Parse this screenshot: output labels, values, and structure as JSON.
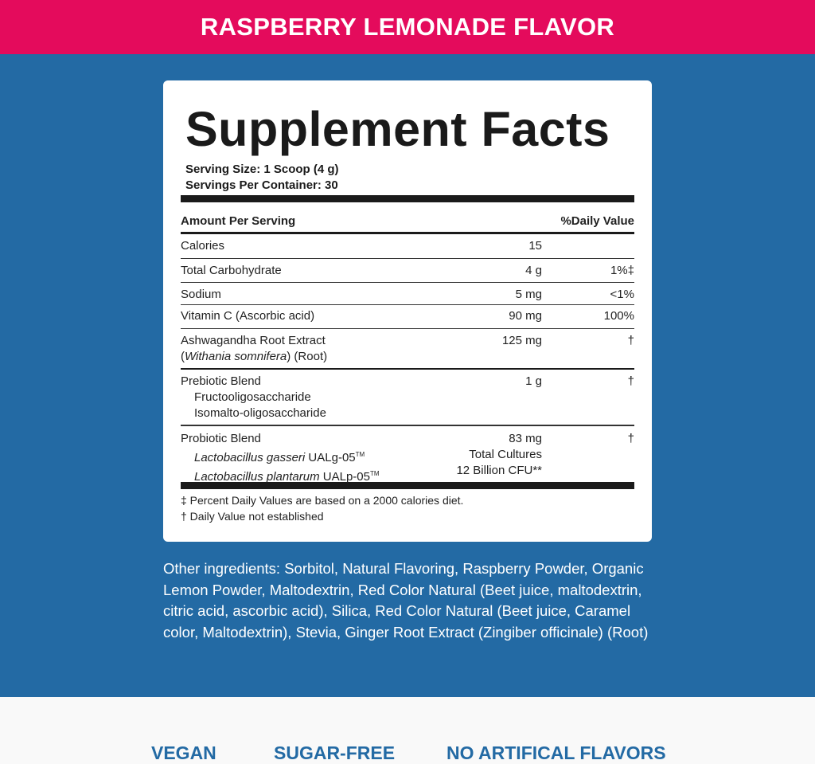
{
  "header": {
    "title": "RASPBERRY LEMONADE FLAVOR"
  },
  "colors": {
    "header_bg": "#e40b5c",
    "main_bg": "#236aa4",
    "card_bg": "#ffffff",
    "badge_text": "#236aa4"
  },
  "facts": {
    "title": "Supplement Facts",
    "serving_size": "Serving Size: 1 Scoop (4 g)",
    "servings_per_container": "Servings Per Container: 30",
    "col_amount": "Amount Per Serving",
    "col_dv": "%Daily Value",
    "rows": [
      {
        "name": "Calories",
        "amount": "15",
        "dv": ""
      },
      {
        "name": "Total Carbohydrate",
        "amount": "4 g",
        "dv": "1%‡"
      },
      {
        "name": "Sodium",
        "amount": "5 mg",
        "dv": "<1%"
      },
      {
        "name": "Vitamin C (Ascorbic acid)",
        "amount": "90 mg",
        "dv": "100%"
      },
      {
        "name": "Ashwagandha Root Extract",
        "latin": "Withania somnifera",
        "suffix": ") (Root)",
        "amount": "125 mg",
        "dv": "†"
      },
      {
        "name": "Prebiotic Blend",
        "sub": [
          "Fructooligosaccharide",
          "Isomalto-oligosaccharide"
        ],
        "amount": "1 g",
        "dv": "†"
      },
      {
        "name": "Probiotic Blend",
        "sub": [
          {
            "latin": "Lactobacillus gasseri",
            "strain": "UALg-05",
            "tm": "TM"
          },
          {
            "latin": "Lactobacillus plantarum",
            "strain": "UALp-05",
            "tm": "TM"
          }
        ],
        "amount": "83 mg",
        "amount2": "Total Cultures",
        "amount3": "12 Billion CFU**",
        "dv": "†"
      }
    ],
    "footnotes": [
      "‡ Percent Daily Values are based on a 2000 calories diet.",
      "† Daily Value not established"
    ]
  },
  "other_ingredients": "Other ingredients: Sorbitol, Natural Flavoring, Raspberry Powder, Organic Lemon Powder, Maltodextrin, Red Color Natural (Beet juice, maltodextrin, citric acid, ascorbic acid), Silica, Red Color Natural (Beet juice, Caramel color, Maltodextrin), Stevia, Ginger Root Extract (Zingiber officinale) (Root)",
  "badges": [
    "VEGAN",
    "SUGAR-FREE",
    "NO ARTIFICAL FLAVORS"
  ]
}
